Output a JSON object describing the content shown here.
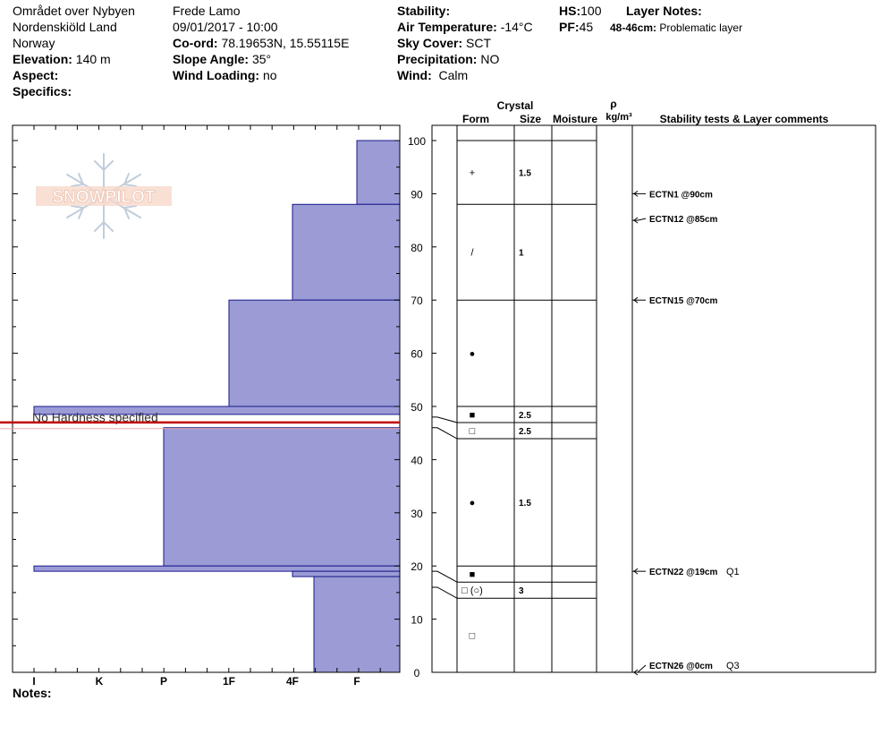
{
  "header": {
    "location": "Området over Nybyen",
    "region": "Nordenskiöld Land",
    "country": "Norway",
    "elevation_label": "Elevation:",
    "elevation_value": "140 m",
    "aspect_label": "Aspect:",
    "specifics_label": "Specifics:",
    "observer": "Frede Lamo",
    "datetime": "09/01/2017 - 10:00",
    "coord_label": "Co-ord:",
    "coord_value": "78.19653N, 15.55115E",
    "slope_label": "Slope Angle:",
    "slope_value": "35°",
    "wind_loading_label": "Wind Loading:",
    "wind_loading_value": "no",
    "stability_label": "Stability:",
    "air_temp_label": "Air Temperature:",
    "air_temp_value": "-14°C",
    "sky_label": "Sky Cover:",
    "sky_value": "SCT",
    "precip_label": "Precipitation:",
    "precip_value": "NO",
    "wind_label": "Wind:",
    "wind_value": "Calm",
    "hs_label": "HS:",
    "hs_value": "100",
    "pf_label": "PF:",
    "pf_value": "45",
    "layer_notes_label": "Layer Notes:",
    "layer_note_range": "48-46cm:",
    "layer_note_text": "Problematic layer"
  },
  "logo_text": "SNOWPILOT",
  "notes_label": "Notes:",
  "no_hardness_text": "No Hardness specified",
  "columns": {
    "crystal": "Crystal",
    "form": "Form",
    "size": "Size",
    "moisture": "Moisture",
    "rho": "ρ",
    "density_unit": "kg/m³",
    "stability": "Stability tests & Layer comments"
  },
  "colors": {
    "hardness_fill": "#9b9bd6",
    "hardness_stroke": "#1a1a8c",
    "problem_line": "#c00000"
  },
  "chart_data": {
    "type": "snow_profile",
    "depth_axis": {
      "min": 0,
      "max": 100,
      "ticks": [
        "0",
        "10",
        "20",
        "30",
        "40",
        "50",
        "60",
        "70",
        "80",
        "90",
        "100"
      ]
    },
    "hardness_axis": [
      "I",
      "K",
      "P",
      "1F",
      "4F",
      "F"
    ],
    "hardness_layers": [
      {
        "top": 100,
        "bottom": 88,
        "hardness": "F"
      },
      {
        "top": 88,
        "bottom": 70,
        "hardness": "4F"
      },
      {
        "top": 70,
        "bottom": 50,
        "hardness": "1F"
      },
      {
        "top": 50,
        "bottom": 48.5,
        "hardness": "I"
      },
      {
        "top": 46,
        "bottom": 20,
        "hardness": "P"
      },
      {
        "top": 20,
        "bottom": 19,
        "hardness": "I"
      },
      {
        "top": 19,
        "bottom": 18,
        "hardness": "4F"
      },
      {
        "top": 18,
        "bottom": 0,
        "hardness": "4F-"
      }
    ],
    "problem_layer": {
      "top": 48,
      "bottom": 46
    },
    "layer_boundaries": [
      100,
      88,
      70,
      50,
      48,
      46,
      20,
      19,
      16,
      0
    ],
    "crystals": [
      {
        "top": 100,
        "bottom": 88,
        "form": "+",
        "size": "1.5"
      },
      {
        "top": 88,
        "bottom": 70,
        "form": "/",
        "size": "1"
      },
      {
        "top": 70,
        "bottom": 50,
        "form": "●",
        "size": ""
      },
      {
        "top": 50,
        "bottom": 48,
        "form": "■",
        "size": "2.5"
      },
      {
        "top": 48,
        "bottom": 46,
        "form": "□",
        "size": "2.5"
      },
      {
        "top": 46,
        "bottom": 20,
        "form": "●",
        "size": "1.5"
      },
      {
        "top": 20,
        "bottom": 19,
        "form": "■",
        "size": ""
      },
      {
        "top": 19,
        "bottom": 16,
        "form": "□ (○)",
        "size": "3"
      },
      {
        "top": 16,
        "bottom": 0,
        "form": "□",
        "size": ""
      }
    ],
    "stability_tests": [
      {
        "depth": 90,
        "label": "ECTN1 @90cm",
        "quality": ""
      },
      {
        "depth": 85,
        "label": "ECTN12 @85cm",
        "quality": ""
      },
      {
        "depth": 70,
        "label": "ECTN15 @70cm",
        "quality": ""
      },
      {
        "depth": 19,
        "label": "ECTN22 @19cm",
        "quality": "Q1"
      },
      {
        "depth": 0,
        "label": "ECTN26 @0cm",
        "quality": "Q3"
      }
    ]
  }
}
